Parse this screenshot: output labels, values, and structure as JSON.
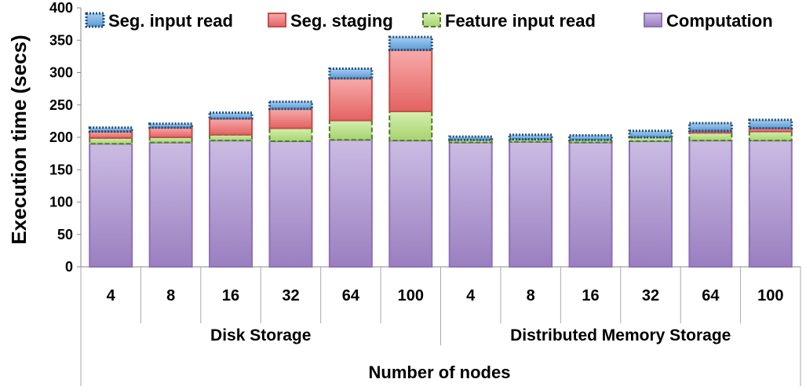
{
  "chart_data": {
    "type": "bar",
    "stacked": true,
    "ylabel": "Execution time (secs)",
    "xlabel": "Number of nodes",
    "ylim": [
      0,
      400
    ],
    "yticks": [
      0,
      50,
      100,
      150,
      200,
      250,
      300,
      350,
      400
    ],
    "grid": false,
    "legend_position": "top",
    "groups": [
      {
        "label": "Disk Storage",
        "categories": [
          "4",
          "8",
          "16",
          "32",
          "64",
          "100"
        ]
      },
      {
        "label": "Distributed Memory Storage",
        "categories": [
          "4",
          "8",
          "16",
          "32",
          "64",
          "100"
        ]
      }
    ],
    "categories": [
      "4",
      "8",
      "16",
      "32",
      "64",
      "100",
      "4",
      "8",
      "16",
      "32",
      "64",
      "100"
    ],
    "series": [
      {
        "name": "Computation",
        "color": "#a78bc9",
        "border": "#8e72b8",
        "values": [
          190,
          192,
          195,
          194,
          196,
          195,
          192,
          193,
          192,
          194,
          195,
          195
        ]
      },
      {
        "name": "Feature input read",
        "color": "#b7dd85",
        "border": "#4f7a28",
        "dashed": true,
        "values": [
          9,
          8,
          9,
          20,
          30,
          45,
          4,
          4,
          4,
          6,
          12,
          14
        ]
      },
      {
        "name": "Seg. staging",
        "color": "#ef7b7b",
        "border": "#c0504d",
        "values": [
          10,
          15,
          25,
          30,
          65,
          95,
          0,
          0,
          0,
          0,
          3,
          5
        ]
      },
      {
        "name": "Seg. input read",
        "color": "#6fa8dc",
        "border": "#1f4e79",
        "dotted": true,
        "values": [
          6,
          6,
          9,
          11,
          15,
          20,
          5,
          7,
          7,
          10,
          12,
          13
        ]
      }
    ],
    "legend_order": [
      "Seg. input read",
      "Seg. staging",
      "Feature input read",
      "Computation"
    ]
  }
}
